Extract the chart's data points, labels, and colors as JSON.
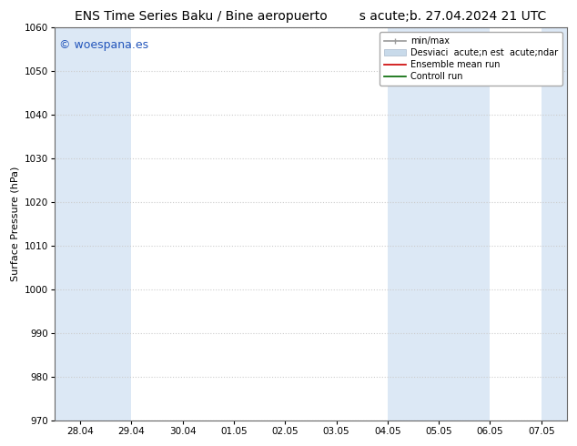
{
  "title_left": "ENS Time Series Baku / Bine aeropuerto",
  "title_right": "s acute;b. 27.04.2024 21 UTC",
  "ylabel": "Surface Pressure (hPa)",
  "ylim": [
    970,
    1060
  ],
  "yticks": [
    970,
    980,
    990,
    1000,
    1010,
    1020,
    1030,
    1040,
    1050,
    1060
  ],
  "xtick_labels": [
    "28.04",
    "29.04",
    "30.04",
    "01.05",
    "02.05",
    "03.05",
    "04.05",
    "05.05",
    "06.05",
    "07.05"
  ],
  "xtick_positions": [
    0,
    1,
    2,
    3,
    4,
    5,
    6,
    7,
    8,
    9
  ],
  "xlim": [
    -0.5,
    9.5
  ],
  "bg_color": "#ffffff",
  "plot_bg_color": "#ffffff",
  "shaded_bands": [
    {
      "x_start": -0.5,
      "x_end": 1.0,
      "color": "#dce8f5"
    },
    {
      "x_start": 6.0,
      "x_end": 8.0,
      "color": "#dce8f5"
    },
    {
      "x_start": 9.0,
      "x_end": 9.5,
      "color": "#dce8f5"
    }
  ],
  "watermark": "© woespana.es",
  "watermark_color": "#2255bb",
  "watermark_fontsize": 9,
  "legend_labels": [
    "min/max",
    "Desviaci  acute;n est  acute;ndar",
    "Ensemble mean run",
    "Controll run"
  ],
  "legend_colors_line": [
    "#999999",
    "#c8daea",
    "#cc0000",
    "#006600"
  ],
  "legend_patch": [
    false,
    true,
    false,
    false
  ],
  "title_fontsize": 10,
  "axis_label_fontsize": 8,
  "tick_fontsize": 7.5,
  "grid_color": "#cccccc",
  "grid_linestyle": ":",
  "grid_linewidth": 0.8
}
